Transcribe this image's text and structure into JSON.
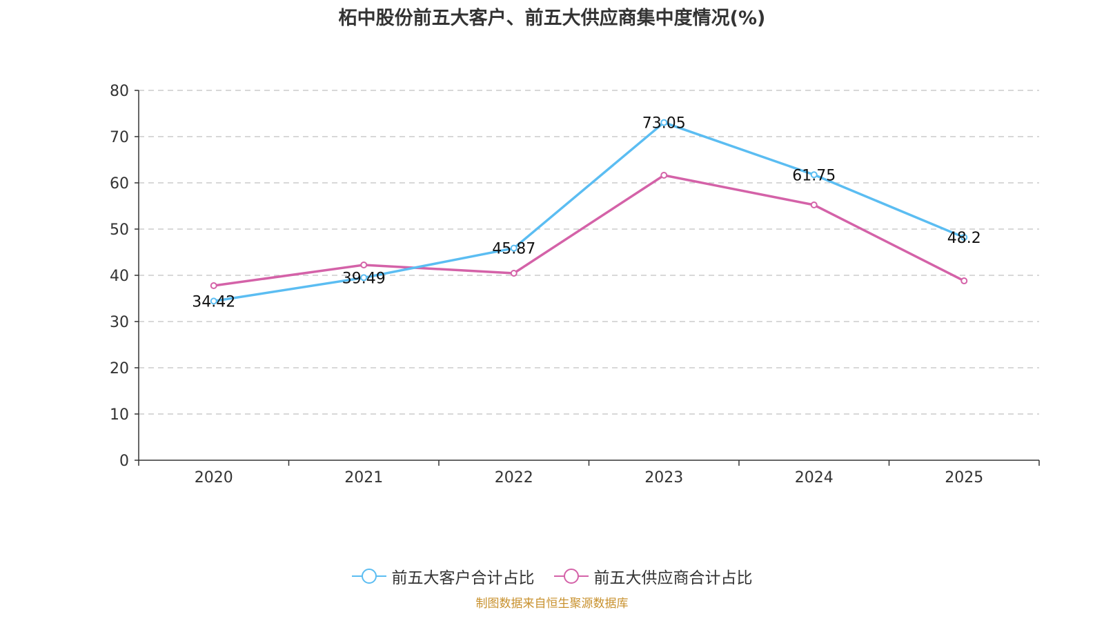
{
  "chart_data": {
    "type": "line",
    "title": "柘中股份前五大客户、前五大供应商集中度情况(%)",
    "xlabel": "",
    "ylabel": "",
    "categories": [
      "2020",
      "2021",
      "2022",
      "2023",
      "2024",
      "2025"
    ],
    "ylim": [
      0,
      80
    ],
    "yticks": [
      "0",
      "10",
      "20",
      "30",
      "40",
      "50",
      "60",
      "70",
      "80"
    ],
    "grid": true,
    "legend_position": "bottom",
    "series": [
      {
        "name": "前五大客户合计占比",
        "color": "#5bbdf2",
        "values": [
          34.42,
          39.49,
          45.87,
          73.05,
          61.75,
          48.2
        ],
        "labels": [
          "34.42",
          "39.49",
          "45.87",
          "73.05",
          "61.75",
          "48.2"
        ],
        "show_labels": true
      },
      {
        "name": "前五大供应商合计占比",
        "color": "#d462a8",
        "values": [
          37.76,
          42.24,
          40.45,
          61.64,
          55.22,
          38.8
        ],
        "show_labels": false
      }
    ]
  },
  "source_note": "制图数据来自恒生聚源数据库"
}
